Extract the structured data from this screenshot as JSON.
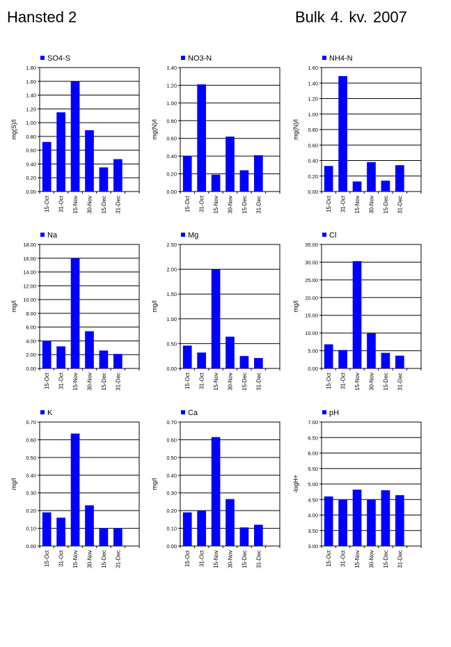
{
  "header": {
    "left": "Hansted 2",
    "right": "Bulk  4. kv. 2007"
  },
  "colors": {
    "bar": "#0000FF",
    "grid": "#000000"
  },
  "chart_data": [
    {
      "type": "bar",
      "series_name": "SO4-S",
      "ylabel": "mg(S)/l",
      "ylim": [
        0,
        1.8
      ],
      "ystep": 0.2,
      "categories": [
        "15-Oct",
        "31-Oct",
        "15-Nov",
        "30-Nov",
        "15-Dec",
        "31-Dec"
      ],
      "values": [
        0.72,
        1.15,
        1.6,
        0.89,
        0.35,
        0.47
      ]
    },
    {
      "type": "bar",
      "series_name": "NO3-N",
      "ylabel": "mg(N)/l",
      "ylim": [
        0,
        1.4
      ],
      "ystep": 0.2,
      "categories": [
        "15-Oct",
        "31-Oct",
        "15-Nov",
        "30-Nov",
        "15-Dec",
        "31-Dec"
      ],
      "values": [
        0.4,
        1.21,
        0.19,
        0.62,
        0.24,
        0.41
      ]
    },
    {
      "type": "bar",
      "series_name": "NH4-N",
      "ylabel": "mg(N)/l",
      "ylim": [
        0,
        1.6
      ],
      "ystep": 0.2,
      "categories": [
        "15-Oct",
        "31-Oct",
        "15-Nov",
        "30-Nov",
        "15-Dec",
        "31-Dec"
      ],
      "values": [
        0.33,
        1.49,
        0.13,
        0.38,
        0.14,
        0.34
      ]
    },
    {
      "type": "bar",
      "series_name": "Na",
      "ylabel": "mg/l",
      "ylim": [
        0,
        18
      ],
      "ystep": 2,
      "categories": [
        "15-Oct",
        "31-Oct",
        "15-Nov",
        "30-Nov",
        "15-Dec",
        "31-Dec"
      ],
      "values": [
        4.0,
        3.2,
        16.0,
        5.4,
        2.6,
        2.1
      ]
    },
    {
      "type": "bar",
      "series_name": "Mg",
      "ylabel": "mg/l",
      "ylim": [
        0,
        2.5
      ],
      "ystep": 0.5,
      "categories": [
        "15-Oct",
        "31-Oct",
        "15-Nov",
        "30-Nov",
        "15-Dec",
        "31-Dec"
      ],
      "values": [
        0.46,
        0.32,
        2.0,
        0.64,
        0.25,
        0.21
      ]
    },
    {
      "type": "bar",
      "series_name": "Cl",
      "ylabel": "mg/l",
      "ylim": [
        0,
        35
      ],
      "ystep": 5,
      "categories": [
        "15-Oct",
        "31-Oct",
        "15-Nov",
        "30-Nov",
        "15-Dec",
        "31-Dec"
      ],
      "values": [
        6.8,
        5.2,
        30.3,
        9.9,
        4.4,
        3.6
      ]
    },
    {
      "type": "bar",
      "series_name": "K",
      "ylabel": "mg/l",
      "ylim": [
        0,
        0.7
      ],
      "ystep": 0.1,
      "categories": [
        "15-Oct",
        "31-Oct",
        "15-Nov",
        "30-Nov",
        "15-Dec",
        "31-Dec"
      ],
      "values": [
        0.19,
        0.16,
        0.635,
        0.23,
        0.1,
        0.1
      ]
    },
    {
      "type": "bar",
      "series_name": "Ca",
      "ylabel": "mg/l",
      "ylim": [
        0,
        0.7
      ],
      "ystep": 0.1,
      "categories": [
        "15-Oct",
        "31-Oct",
        "15-Nov",
        "30-Nov",
        "15-Dec",
        "31-Dec"
      ],
      "values": [
        0.19,
        0.2,
        0.615,
        0.265,
        0.105,
        0.12
      ]
    },
    {
      "type": "bar",
      "series_name": "pH",
      "ylabel": "-logH+",
      "ylim": [
        3.0,
        7.0
      ],
      "ystep": 0.5,
      "categories": [
        "15-Oct",
        "31-Oct",
        "15-Nov",
        "30-Nov",
        "15-Dec",
        "31-Dec"
      ],
      "values": [
        4.6,
        4.49,
        4.82,
        4.49,
        4.8,
        4.64
      ]
    }
  ]
}
